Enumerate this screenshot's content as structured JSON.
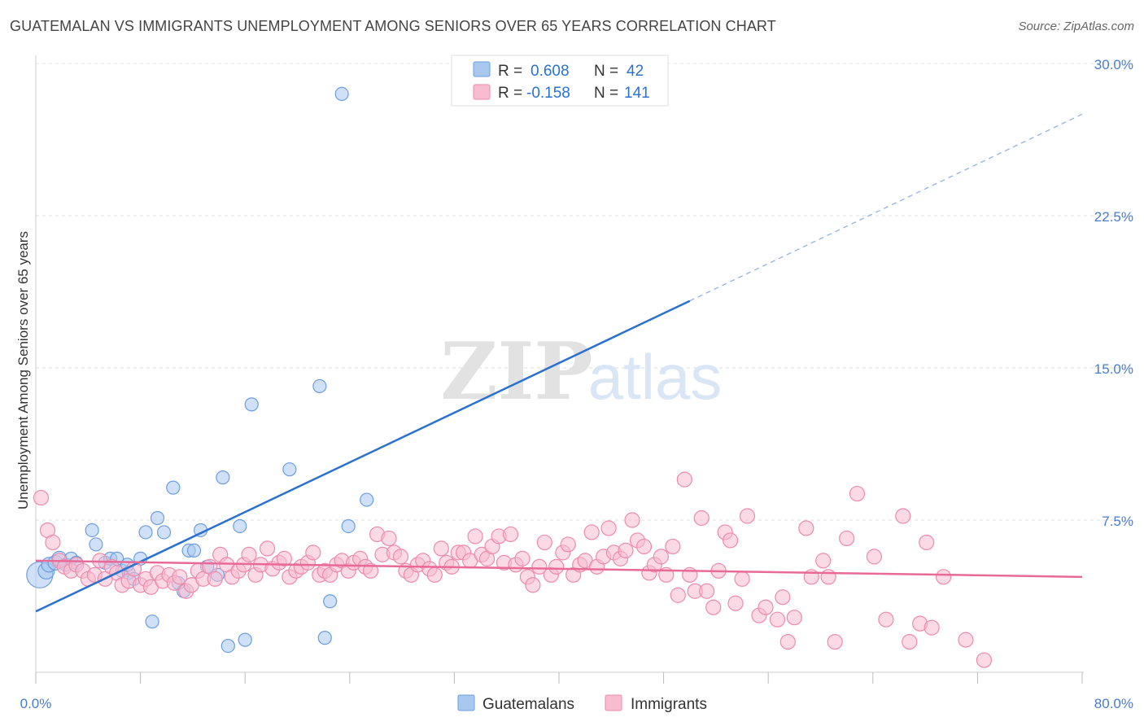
{
  "title": "GUATEMALAN VS IMMIGRANTS UNEMPLOYMENT AMONG SENIORS OVER 65 YEARS CORRELATION CHART",
  "source": "Source: ZipAtlas.com",
  "watermark": {
    "zip": "ZIP",
    "atlas": "atlas"
  },
  "legend_top": [
    {
      "r_label": "R =",
      "r_value": "0.608",
      "n_label": "N =",
      "n_value": "42",
      "color": "#a9c8f0",
      "stroke": "#6b9ee0"
    },
    {
      "r_label": "R =",
      "r_value": "-0.158",
      "n_label": "N =",
      "n_value": "141",
      "color": "#f7bcd0",
      "stroke": "#ee8aab"
    }
  ],
  "legend_bottom": [
    {
      "label": "Guatemalans",
      "color": "#a9c8f0",
      "stroke": "#6b9ee0"
    },
    {
      "label": "Immigrants",
      "color": "#f7bcd0",
      "stroke": "#ee8aab"
    }
  ],
  "chart_data": {
    "type": "scatter",
    "xlabel": "",
    "ylabel": "Unemployment Among Seniors over 65 years",
    "xlim": [
      0,
      80
    ],
    "ylim": [
      0,
      30
    ],
    "x_tick_labels": [
      "0.0%",
      "80.0%"
    ],
    "y_ticks": [
      7.5,
      15.0,
      22.5,
      30.0
    ],
    "y_tick_labels": [
      "7.5%",
      "15.0%",
      "22.5%",
      "30.0%"
    ],
    "series": [
      {
        "name": "Guatemalans",
        "color": "#6b9ee0",
        "fill": "#a9c8f0",
        "trend": {
          "x0": 0,
          "y0": 3.0,
          "x1": 50,
          "y1": 18.3,
          "dash_to_x": 80,
          "dash_to_y": 27.5,
          "color": "#2a72d1"
        },
        "points": [
          [
            0.3,
            4.8,
            16
          ],
          [
            0.8,
            5.0,
            10
          ],
          [
            1.0,
            5.3,
            9
          ],
          [
            1.5,
            5.4,
            9
          ],
          [
            1.8,
            5.6,
            9
          ],
          [
            2.3,
            5.3,
            8
          ],
          [
            2.7,
            5.6,
            8
          ],
          [
            3.1,
            5.4,
            8
          ],
          [
            4.3,
            7.0,
            8
          ],
          [
            4.6,
            6.3,
            8
          ],
          [
            5.3,
            5.4,
            8
          ],
          [
            5.7,
            5.6,
            8
          ],
          [
            6.2,
            5.6,
            8
          ],
          [
            6.6,
            5.0,
            8
          ],
          [
            7.1,
            4.9,
            8
          ],
          [
            7.5,
            4.6,
            8
          ],
          [
            8.0,
            5.6,
            8
          ],
          [
            8.4,
            6.9,
            8
          ],
          [
            9.3,
            7.6,
            8
          ],
          [
            9.8,
            6.9,
            8
          ],
          [
            10.5,
            9.1,
            8
          ],
          [
            10.9,
            4.4,
            8
          ],
          [
            11.3,
            4.0,
            8
          ],
          [
            11.7,
            6.0,
            8
          ],
          [
            12.1,
            6.0,
            8
          ],
          [
            12.6,
            7.0,
            8
          ],
          [
            13.1,
            5.2,
            8
          ],
          [
            13.9,
            4.8,
            8
          ],
          [
            14.3,
            9.6,
            8
          ],
          [
            14.7,
            1.3,
            8
          ],
          [
            15.6,
            7.2,
            8
          ],
          [
            16.0,
            1.6,
            8
          ],
          [
            16.5,
            13.2,
            8
          ],
          [
            19.4,
            10.0,
            8
          ],
          [
            21.7,
            14.1,
            8
          ],
          [
            22.1,
            1.7,
            8
          ],
          [
            22.5,
            3.5,
            8
          ],
          [
            23.4,
            28.5,
            8
          ],
          [
            23.9,
            7.2,
            8
          ],
          [
            25.3,
            8.5,
            8
          ],
          [
            8.9,
            2.5,
            8
          ],
          [
            7.0,
            5.3,
            8
          ]
        ]
      },
      {
        "name": "Immigrants",
        "color": "#ee8aab",
        "fill": "#f7bcd0",
        "trend": {
          "x0": 0,
          "y0": 5.5,
          "x1": 80,
          "y1": 4.7,
          "color": "#e86a97"
        },
        "points": [
          [
            0.4,
            8.6
          ],
          [
            0.9,
            7.0
          ],
          [
            1.3,
            6.4
          ],
          [
            1.8,
            5.5
          ],
          [
            2.2,
            5.2
          ],
          [
            2.7,
            5.0
          ],
          [
            3.1,
            5.3
          ],
          [
            3.6,
            5.0
          ],
          [
            4.0,
            4.6
          ],
          [
            4.5,
            4.8
          ],
          [
            4.9,
            5.5
          ],
          [
            5.3,
            4.6
          ],
          [
            5.8,
            5.2
          ],
          [
            6.2,
            4.9
          ],
          [
            6.6,
            4.3
          ],
          [
            7.1,
            4.5
          ],
          [
            7.5,
            5.1
          ],
          [
            8.0,
            4.3
          ],
          [
            8.4,
            4.6
          ],
          [
            8.8,
            4.2
          ],
          [
            9.3,
            4.9
          ],
          [
            9.7,
            4.5
          ],
          [
            10.2,
            4.8
          ],
          [
            10.6,
            4.4
          ],
          [
            11.0,
            4.7
          ],
          [
            11.5,
            4.0
          ],
          [
            11.9,
            4.3
          ],
          [
            12.4,
            5.0
          ],
          [
            12.8,
            4.6
          ],
          [
            13.3,
            5.2
          ],
          [
            13.7,
            4.6
          ],
          [
            14.1,
            5.8
          ],
          [
            14.6,
            5.3
          ],
          [
            15.0,
            4.7
          ],
          [
            15.5,
            5.0
          ],
          [
            15.9,
            5.3
          ],
          [
            16.3,
            5.8
          ],
          [
            16.8,
            4.8
          ],
          [
            17.2,
            5.3
          ],
          [
            17.7,
            6.1
          ],
          [
            18.1,
            5.1
          ],
          [
            18.6,
            5.4
          ],
          [
            19.0,
            5.6
          ],
          [
            19.4,
            4.7
          ],
          [
            19.9,
            5.0
          ],
          [
            20.3,
            5.2
          ],
          [
            20.8,
            5.4
          ],
          [
            21.2,
            5.9
          ],
          [
            21.7,
            4.8
          ],
          [
            22.1,
            5.0
          ],
          [
            22.5,
            4.8
          ],
          [
            23.0,
            5.3
          ],
          [
            23.4,
            5.5
          ],
          [
            23.9,
            5.0
          ],
          [
            24.3,
            5.4
          ],
          [
            24.8,
            5.6
          ],
          [
            25.2,
            5.2
          ],
          [
            25.6,
            5.0
          ],
          [
            26.1,
            6.8
          ],
          [
            26.5,
            5.8
          ],
          [
            27.0,
            6.6
          ],
          [
            27.4,
            5.9
          ],
          [
            27.9,
            5.7
          ],
          [
            28.3,
            5.0
          ],
          [
            28.7,
            4.8
          ],
          [
            29.2,
            5.3
          ],
          [
            29.6,
            5.5
          ],
          [
            30.1,
            5.1
          ],
          [
            30.5,
            4.8
          ],
          [
            31.0,
            6.1
          ],
          [
            31.4,
            5.4
          ],
          [
            31.8,
            5.2
          ],
          [
            32.3,
            5.9
          ],
          [
            32.7,
            5.9
          ],
          [
            33.2,
            5.5
          ],
          [
            33.6,
            6.7
          ],
          [
            34.1,
            5.8
          ],
          [
            34.5,
            5.6
          ],
          [
            34.9,
            6.2
          ],
          [
            35.4,
            6.7
          ],
          [
            35.8,
            5.4
          ],
          [
            36.3,
            6.8
          ],
          [
            36.7,
            5.3
          ],
          [
            37.2,
            5.6
          ],
          [
            37.6,
            4.7
          ],
          [
            38.0,
            4.3
          ],
          [
            38.5,
            5.2
          ],
          [
            38.9,
            6.4
          ],
          [
            39.4,
            4.8
          ],
          [
            39.8,
            5.2
          ],
          [
            40.3,
            5.9
          ],
          [
            40.7,
            6.3
          ],
          [
            41.1,
            4.8
          ],
          [
            41.6,
            5.3
          ],
          [
            42.0,
            5.5
          ],
          [
            42.5,
            6.9
          ],
          [
            42.9,
            5.2
          ],
          [
            43.4,
            5.7
          ],
          [
            43.8,
            7.1
          ],
          [
            44.2,
            5.9
          ],
          [
            44.7,
            5.6
          ],
          [
            45.1,
            6.0
          ],
          [
            45.6,
            7.5
          ],
          [
            46.0,
            6.5
          ],
          [
            46.5,
            6.2
          ],
          [
            46.9,
            4.9
          ],
          [
            47.3,
            5.3
          ],
          [
            47.8,
            5.7
          ],
          [
            48.2,
            4.8
          ],
          [
            48.7,
            6.2
          ],
          [
            49.1,
            3.8
          ],
          [
            49.6,
            9.5
          ],
          [
            50.0,
            4.8
          ],
          [
            50.4,
            4.0
          ],
          [
            50.9,
            7.6
          ],
          [
            51.3,
            4.0
          ],
          [
            51.8,
            3.2
          ],
          [
            52.2,
            5.0
          ],
          [
            52.7,
            6.9
          ],
          [
            53.1,
            6.5
          ],
          [
            53.5,
            3.4
          ],
          [
            54.0,
            4.6
          ],
          [
            54.4,
            7.7
          ],
          [
            55.3,
            2.8
          ],
          [
            55.8,
            3.2
          ],
          [
            56.7,
            2.6
          ],
          [
            57.1,
            3.7
          ],
          [
            57.5,
            1.5
          ],
          [
            58.0,
            2.7
          ],
          [
            58.9,
            7.1
          ],
          [
            59.3,
            4.7
          ],
          [
            60.2,
            5.5
          ],
          [
            60.6,
            4.7
          ],
          [
            61.1,
            1.5
          ],
          [
            62.0,
            6.6
          ],
          [
            62.8,
            8.8
          ],
          [
            64.1,
            5.7
          ],
          [
            65.0,
            2.6
          ],
          [
            66.3,
            7.7
          ],
          [
            66.8,
            1.5
          ],
          [
            67.6,
            2.4
          ],
          [
            68.1,
            6.4
          ],
          [
            68.5,
            2.2
          ],
          [
            69.4,
            4.7
          ],
          [
            71.1,
            1.6
          ],
          [
            72.5,
            0.6
          ]
        ]
      }
    ]
  }
}
